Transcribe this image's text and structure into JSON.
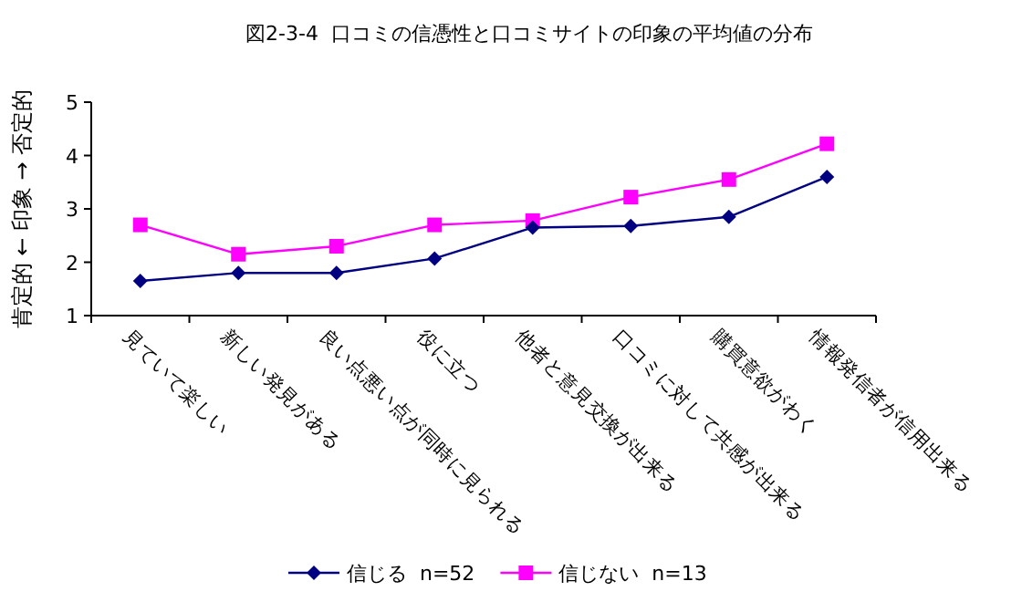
{
  "chart_data": {
    "type": "line",
    "title": "図2-3-4  口コミの信憑性と口コミサイトの印象の平均値の分布",
    "ylabel": "肯定的 ← 印象 → 否定的",
    "categories": [
      "見ていて楽しい",
      "新しい発見がある",
      "良い点悪い点が同時に見られる",
      "役に立つ",
      "他者と意見交換が出来る",
      "口コミに対して共感が出来る",
      "購買意欲がわく",
      "情報発信者が信用出来る"
    ],
    "series": [
      {
        "name": "信じる  n=52",
        "color": "#000080",
        "marker": "diamond",
        "values": [
          1.65,
          1.8,
          1.8,
          2.07,
          2.65,
          2.68,
          2.85,
          3.6
        ]
      },
      {
        "name": "信じない  n=13",
        "color": "#ff00ff",
        "marker": "square",
        "values": [
          2.7,
          2.15,
          2.3,
          2.7,
          2.78,
          3.22,
          3.55,
          4.22
        ]
      }
    ],
    "ylim": [
      1,
      5
    ],
    "yticks": [
      1,
      2,
      3,
      4,
      5
    ],
    "grid": false,
    "legend": "bottom"
  }
}
